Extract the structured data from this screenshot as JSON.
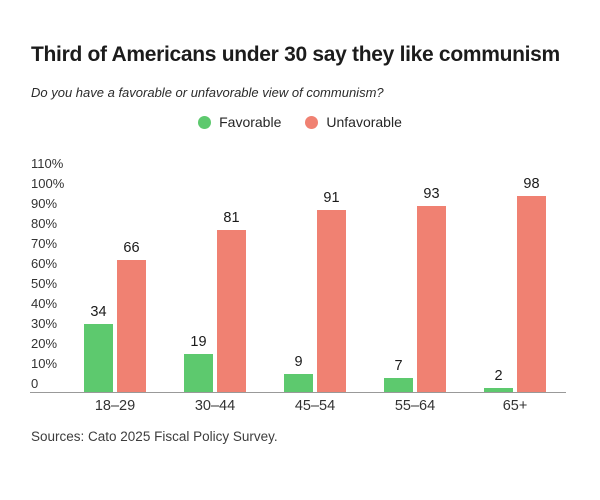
{
  "title": "Third of Americans under 30 say they like communism",
  "subtitle": "Do you have a favorable or unfavorable view of communism?",
  "source": "Sources: Cato 2025 Fiscal Policy Survey.",
  "colors": {
    "favorable": "#5dc96e",
    "unfavorable": "#f08172",
    "axis_line": "#999999",
    "title_text": "#1c1c1c",
    "axis_text": "#333333"
  },
  "chart_data": {
    "type": "bar",
    "categories": [
      "18–29",
      "30–44",
      "45–54",
      "55–64",
      "65+"
    ],
    "series": [
      {
        "name": "Favorable",
        "color": "#5dc96e",
        "values": [
          34,
          19,
          9,
          7,
          2
        ]
      },
      {
        "name": "Unfavorable",
        "color": "#f08172",
        "values": [
          66,
          81,
          91,
          93,
          98
        ]
      }
    ],
    "title": "Third of Americans under 30 say they like communism",
    "xlabel": "",
    "ylabel": "",
    "ylim": [
      0,
      110
    ],
    "y_tick_labels": [
      "110%",
      "100%",
      "90%",
      "80%",
      "70%",
      "60%",
      "50%",
      "40%",
      "30%",
      "20%",
      "10%",
      "0"
    ],
    "grid": false,
    "legend_position": "top-center",
    "value_labels": true
  }
}
